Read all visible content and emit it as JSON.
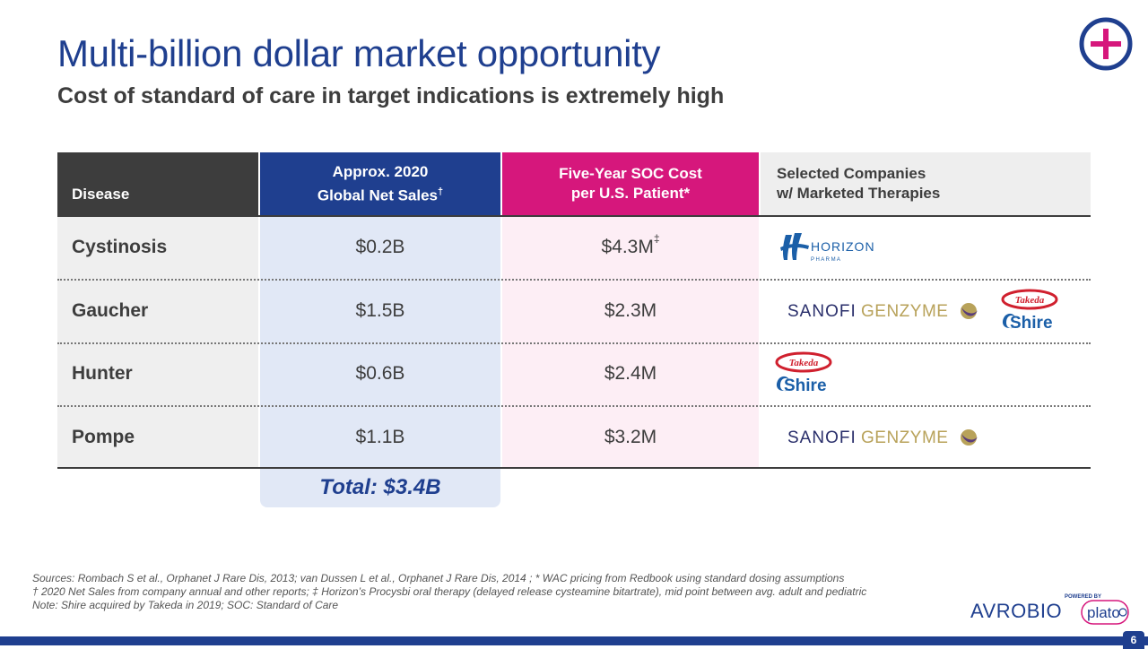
{
  "slide": {
    "title": "Multi-billion dollar market opportunity",
    "subtitle": "Cost of standard of care in target indications is extremely high",
    "page_number": "6"
  },
  "table": {
    "headers": {
      "disease": "Disease",
      "sales_line1": "Approx. 2020",
      "sales_line2": "Global Net Sales",
      "sales_mark": "†",
      "cost_line1": "Five-Year SOC Cost",
      "cost_line2": "per U.S. Patient*",
      "companies_line1": "Selected Companies",
      "companies_line2": "w/ Marketed Therapies"
    },
    "rows": [
      {
        "disease": "Cystinosis",
        "sales": "$0.2B",
        "cost": "$4.3M",
        "cost_mark": "‡",
        "companies": [
          "horizon"
        ]
      },
      {
        "disease": "Gaucher",
        "sales": "$1.5B",
        "cost": "$2.3M",
        "cost_mark": "",
        "companies": [
          "sanofi-genzyme",
          "takeda-shire"
        ]
      },
      {
        "disease": "Hunter",
        "sales": "$0.6B",
        "cost": "$2.4M",
        "cost_mark": "",
        "companies": [
          "takeda-shire"
        ]
      },
      {
        "disease": "Pompe",
        "sales": "$1.1B",
        "cost": "$3.2M",
        "cost_mark": "",
        "companies": [
          "sanofi-genzyme"
        ]
      }
    ],
    "total": "Total: $3.4B"
  },
  "logos": {
    "horizon_text": "HORIZON",
    "horizon_sub": "P H A R M A",
    "sanofi_text": "SANOFI",
    "genzyme_text": "GENZYME",
    "takeda_text": "Takeda",
    "shire_text": "Shire",
    "avrobio_text": "AVROBIO",
    "powered_by": "POWERED BY",
    "plato_text": "plato"
  },
  "footnotes": [
    "Sources: Rombach S et al., Orphanet J Rare Dis, 2013; van Dussen L et al., Orphanet J Rare Dis, 2014 ; * WAC pricing from Redbook using standard dosing assumptions",
    "† 2020 Net Sales from company annual and other reports; ‡ Horizon’s Procysbi oral therapy (delayed release cysteamine bitartrate), mid point between avg. adult and pediatric",
    "Note: Shire acquired by Takeda in 2019; SOC: Standard of Care"
  ],
  "colors": {
    "brand_blue": "#1f3f8f",
    "brand_magenta": "#d6177c",
    "dark_gray": "#3d3d3d",
    "genzyme_gold": "#b8a25a",
    "genzyme_purple": "#5a3d7a",
    "takeda_red": "#d0202e",
    "shire_blue": "#1b5fa8"
  }
}
